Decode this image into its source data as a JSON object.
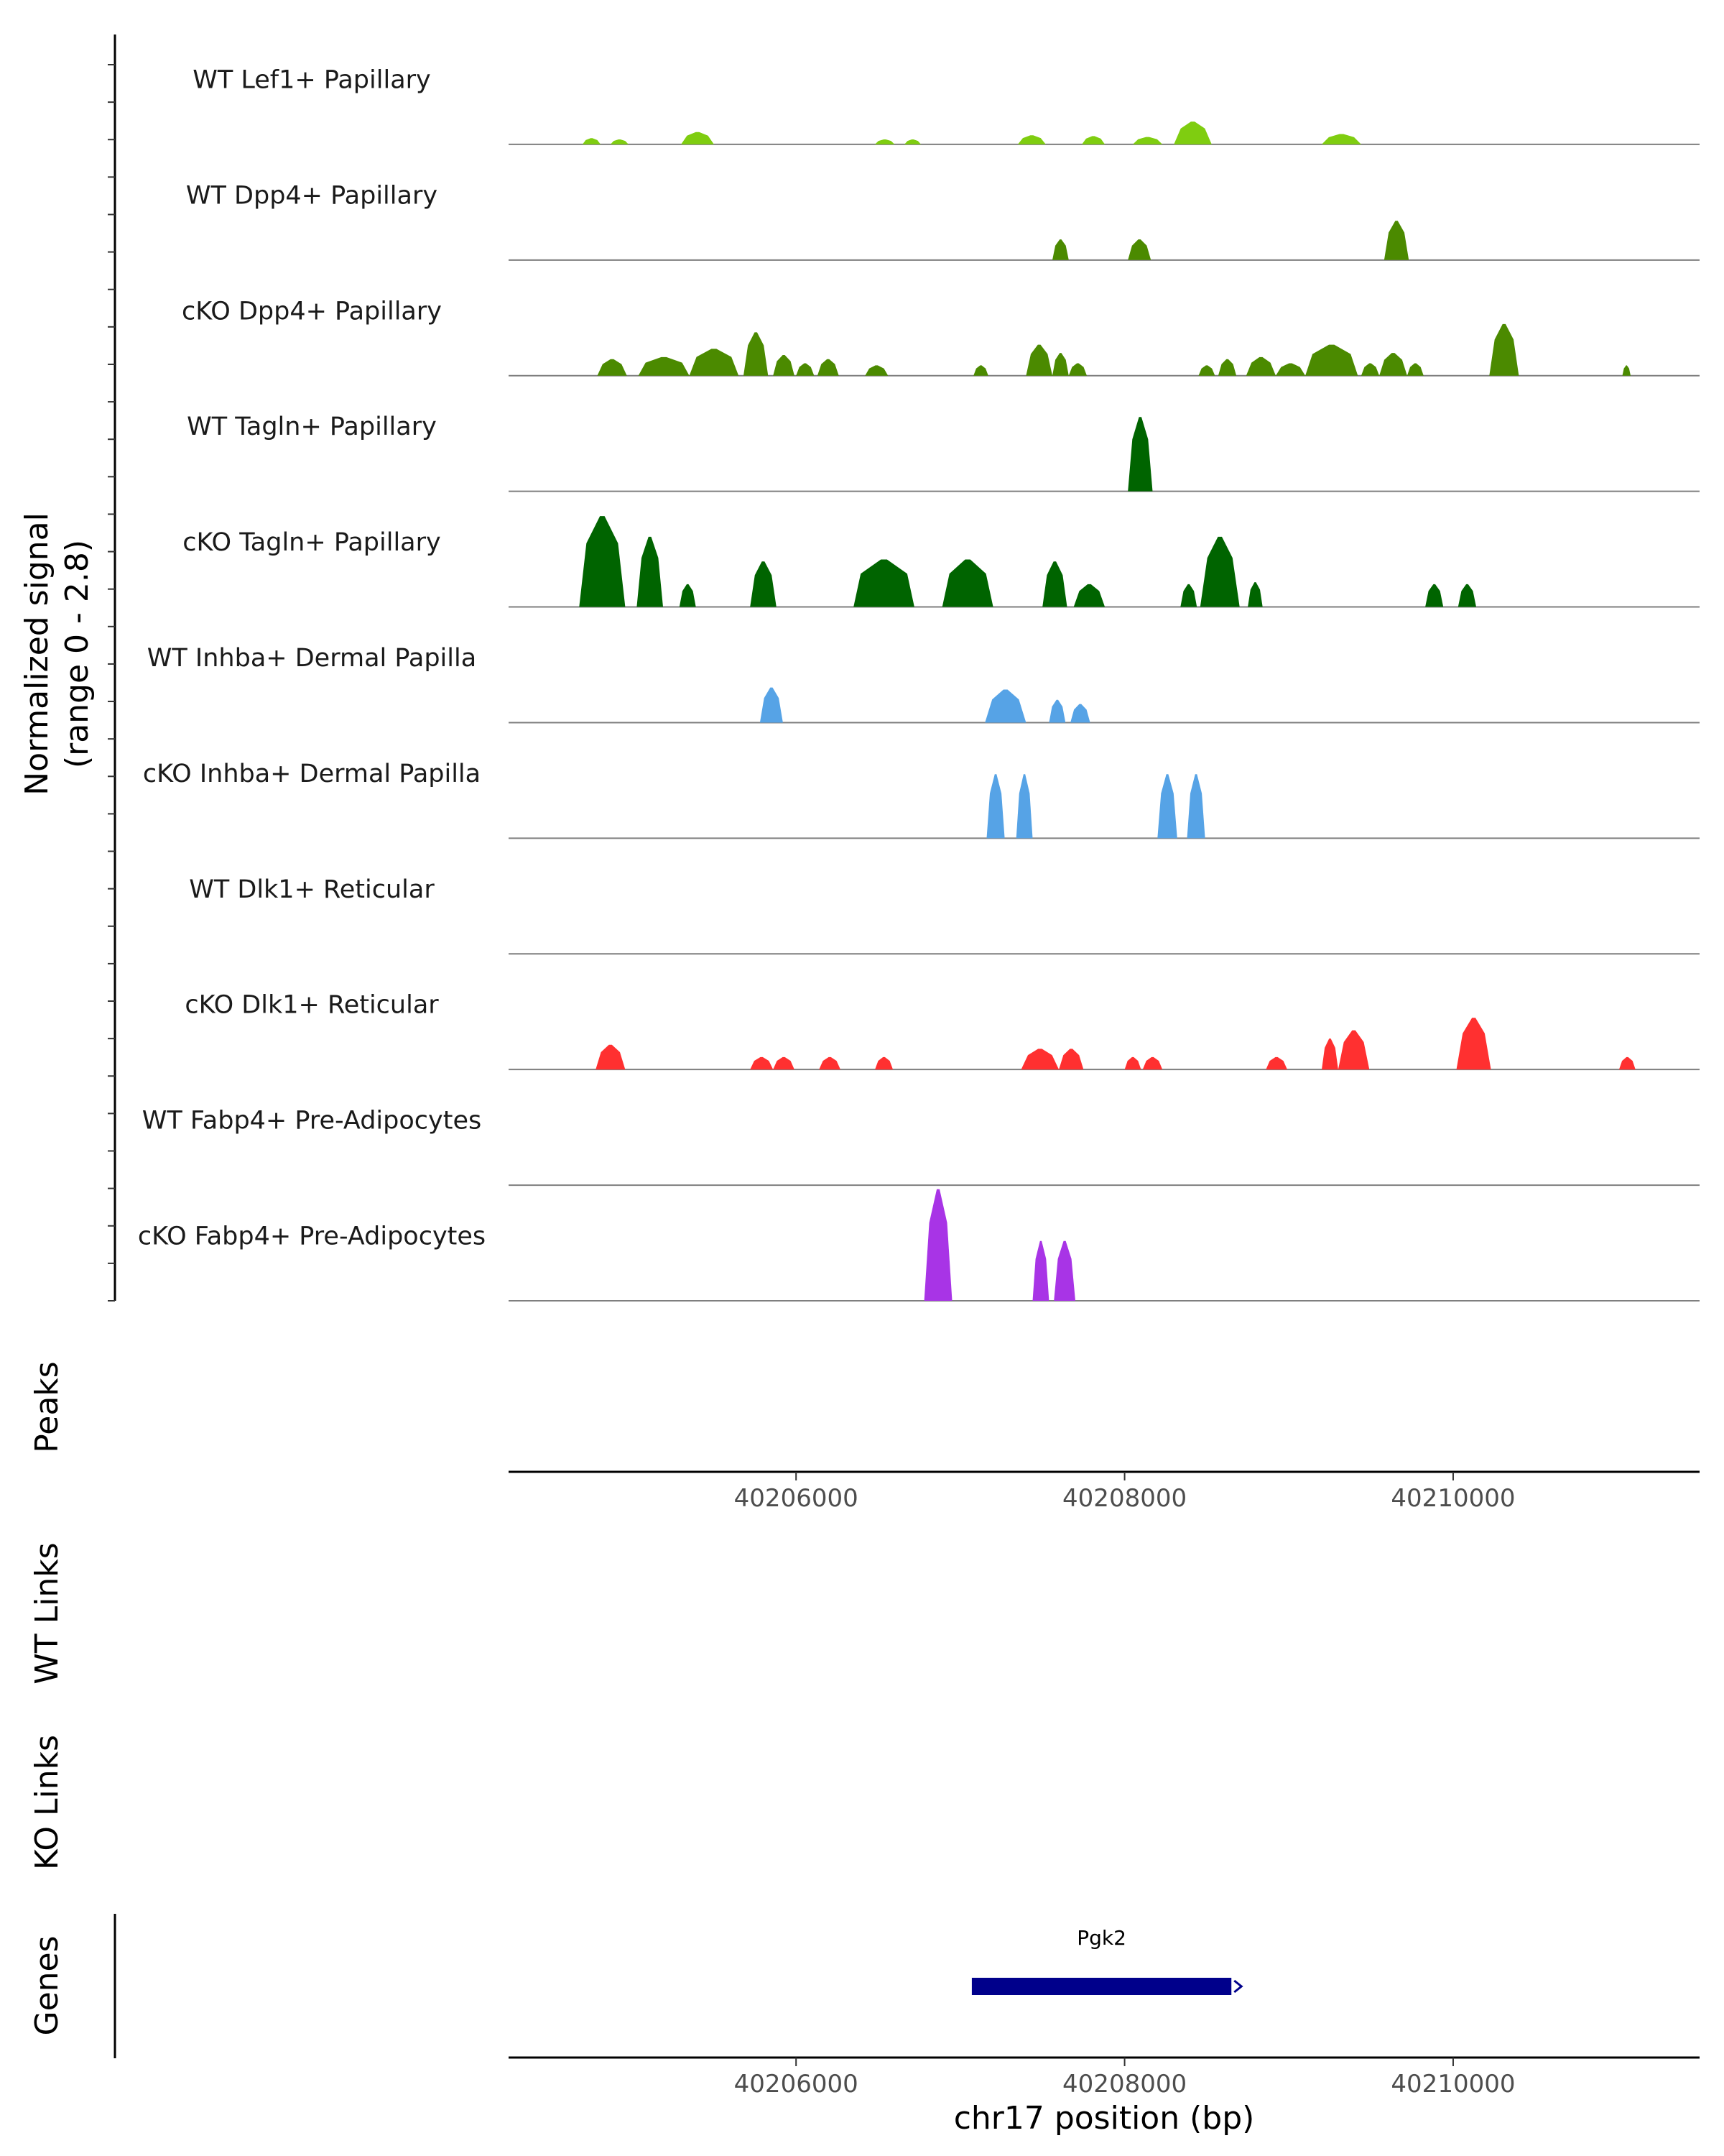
{
  "chart_data": {
    "type": "area",
    "title": "",
    "chromosome": "chr17",
    "xlabel": "chr17 position (bp)",
    "xlim": [
      40204250,
      40211500
    ],
    "xticks": [
      40206000,
      40208000,
      40210000
    ],
    "xtick_labels": [
      "40206000",
      "40208000",
      "40210000"
    ],
    "coverage_ylabel_line1": "Normalized signal",
    "coverage_ylabel_line2": "(range 0 - 2.8)",
    "ylim": [
      0,
      2.8
    ],
    "peaks_label": "Peaks",
    "wt_links_label": "WT Links",
    "ko_links_label": "KO Links",
    "genes_label": "Genes",
    "series": [
      {
        "name": "WT Lef1+ Papillary",
        "color": "#7fcd10",
        "peaks": [
          [
            40204700,
            40204810,
            0.15
          ],
          [
            40204870,
            40204980,
            0.12
          ],
          [
            40205300,
            40205500,
            0.3
          ],
          [
            40206480,
            40206600,
            0.12
          ],
          [
            40206660,
            40206760,
            0.12
          ],
          [
            40207350,
            40207520,
            0.22
          ],
          [
            40207740,
            40207880,
            0.2
          ],
          [
            40208050,
            40208230,
            0.18
          ],
          [
            40208300,
            40208530,
            0.55
          ],
          [
            40209200,
            40209440,
            0.25
          ]
        ]
      },
      {
        "name": "WT Dpp4+ Papillary",
        "color": "#4b8a00",
        "peaks": [
          [
            40207560,
            40207660,
            0.5
          ],
          [
            40208020,
            40208160,
            0.5
          ],
          [
            40209580,
            40209730,
            0.95
          ]
        ]
      },
      {
        "name": "cKO Dpp4+ Papillary",
        "color": "#4b8a00",
        "peaks": [
          [
            40204790,
            40204970,
            0.4
          ],
          [
            40205040,
            40205350,
            0.45
          ],
          [
            40205350,
            40205650,
            0.65
          ],
          [
            40205680,
            40205830,
            1.05
          ],
          [
            40205860,
            40205990,
            0.5
          ],
          [
            40206000,
            40206110,
            0.3
          ],
          [
            40206130,
            40206260,
            0.4
          ],
          [
            40206420,
            40206560,
            0.25
          ],
          [
            40207080,
            40207170,
            0.25
          ],
          [
            40207400,
            40207560,
            0.75
          ],
          [
            40207560,
            40207660,
            0.55
          ],
          [
            40207660,
            40207770,
            0.3
          ],
          [
            40208450,
            40208550,
            0.25
          ],
          [
            40208570,
            40208680,
            0.4
          ],
          [
            40208740,
            40208920,
            0.45
          ],
          [
            40208920,
            40209100,
            0.3
          ],
          [
            40209100,
            40209420,
            0.75
          ],
          [
            40209440,
            40209550,
            0.3
          ],
          [
            40209550,
            40209720,
            0.55
          ],
          [
            40209720,
            40209820,
            0.3
          ],
          [
            40210220,
            40210400,
            1.25
          ],
          [
            40211030,
            40211080,
            0.25
          ]
        ]
      },
      {
        "name": "WT Tagln+ Papillary",
        "color": "#006400",
        "peaks": [
          [
            40208020,
            40208170,
            1.8
          ]
        ]
      },
      {
        "name": "cKO Tagln+ Papillary",
        "color": "#006400",
        "peaks": [
          [
            40204680,
            40204960,
            2.2
          ],
          [
            40205030,
            40205190,
            1.7
          ],
          [
            40205290,
            40205390,
            0.55
          ],
          [
            40205720,
            40205880,
            1.1
          ],
          [
            40206350,
            40206720,
            1.15
          ],
          [
            40206890,
            40207200,
            1.15
          ],
          [
            40207500,
            40207650,
            1.1
          ],
          [
            40207690,
            40207880,
            0.55
          ],
          [
            40208340,
            40208440,
            0.55
          ],
          [
            40208460,
            40208700,
            1.7
          ],
          [
            40208750,
            40208840,
            0.6
          ],
          [
            40209830,
            40209940,
            0.55
          ],
          [
            40210030,
            40210140,
            0.55
          ]
        ]
      },
      {
        "name": "WT Inhba+ Dermal Papilla",
        "color": "#56a3e6",
        "peaks": [
          [
            40205780,
            40205920,
            0.85
          ],
          [
            40207150,
            40207400,
            0.8
          ],
          [
            40207540,
            40207640,
            0.55
          ],
          [
            40207670,
            40207790,
            0.45
          ]
        ]
      },
      {
        "name": "cKO Inhba+ Dermal Papilla",
        "color": "#56a3e6",
        "peaks": [
          [
            40207160,
            40207270,
            1.55
          ],
          [
            40207340,
            40207440,
            1.55
          ],
          [
            40208200,
            40208320,
            1.55
          ],
          [
            40208380,
            40208490,
            1.55
          ]
        ]
      },
      {
        "name": "WT Dlk1+ Reticular",
        "color": "#ff3030",
        "peaks": []
      },
      {
        "name": "cKO Dlk1+ Reticular",
        "color": "#ff3030",
        "peaks": [
          [
            40204780,
            40204960,
            0.6
          ],
          [
            40205720,
            40205860,
            0.3
          ],
          [
            40205860,
            40205990,
            0.3
          ],
          [
            40206140,
            40206270,
            0.3
          ],
          [
            40206480,
            40206590,
            0.3
          ],
          [
            40207370,
            40207600,
            0.5
          ],
          [
            40207600,
            40207750,
            0.5
          ],
          [
            40208000,
            40208100,
            0.3
          ],
          [
            40208110,
            40208230,
            0.3
          ],
          [
            40208860,
            40208990,
            0.3
          ],
          [
            40209200,
            40209300,
            0.75
          ],
          [
            40209300,
            40209490,
            0.95
          ],
          [
            40210020,
            40210230,
            1.25
          ],
          [
            40211010,
            40211110,
            0.3
          ]
        ]
      },
      {
        "name": "WT Fabp4+ Pre-Adipocytes",
        "color": "#a834e6",
        "peaks": []
      },
      {
        "name": "cKO Fabp4+ Pre-Adipocytes",
        "color": "#a834e6",
        "peaks": [
          [
            40206780,
            40206950,
            2.7
          ],
          [
            40207440,
            40207540,
            1.45
          ],
          [
            40207570,
            40207700,
            1.45
          ]
        ]
      }
    ],
    "genes": [
      {
        "name": "Pgk2",
        "start": 40207070,
        "end": 40208650,
        "color": "#00008b"
      }
    ]
  }
}
